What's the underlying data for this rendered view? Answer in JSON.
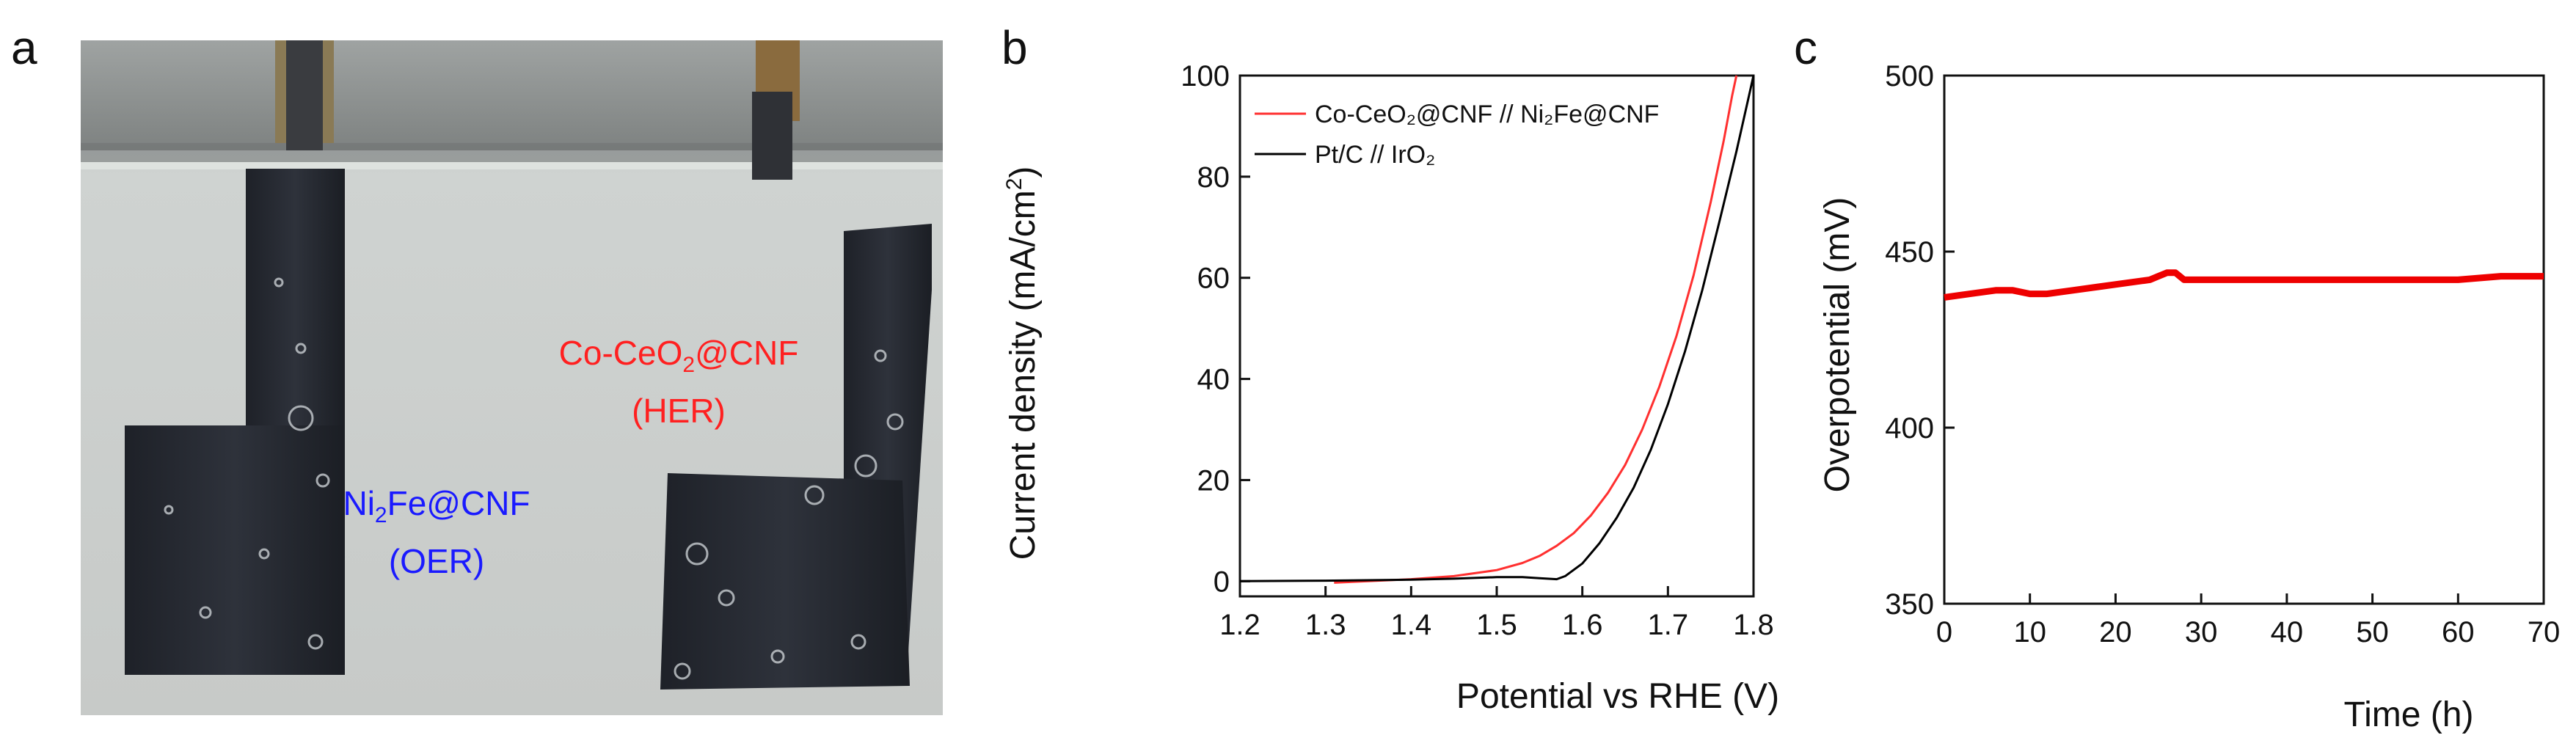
{
  "panel_labels": {
    "a": "a",
    "b": "b",
    "c": "c"
  },
  "photo": {
    "cathode_label": {
      "name": "Co-CeO",
      "sub": "2",
      "rest": "@CNF",
      "role": "(HER)",
      "color": "#ff2020"
    },
    "anode_label": {
      "name": "Ni",
      "sub": "2",
      "rest": "Fe@CNF",
      "role": "(OER)",
      "color": "#1a1aff"
    }
  },
  "chart_data": [
    {
      "type": "line",
      "panel": "b",
      "title": "",
      "xlabel": "Potential vs RHE (V)",
      "ylabel_text": "Current density (mA/cm",
      "ylabel_sup": "2",
      "ylabel_close": ")",
      "xlim": [
        1.2,
        1.8
      ],
      "ylim": [
        -3,
        100
      ],
      "xticks": [
        "1.2",
        "1.3",
        "1.4",
        "1.5",
        "1.6",
        "1.7",
        "1.8"
      ],
      "yticks": [
        "0",
        "20",
        "40",
        "60",
        "80",
        "100"
      ],
      "legend_position": "top-left",
      "series": [
        {
          "name": "Co-CeO₂@CNF // Ni₂Fe@CNF",
          "color": "#ff3030",
          "x": [
            1.31,
            1.35,
            1.4,
            1.45,
            1.5,
            1.53,
            1.55,
            1.57,
            1.59,
            1.61,
            1.63,
            1.65,
            1.67,
            1.69,
            1.71,
            1.73,
            1.75,
            1.765,
            1.775,
            1.78
          ],
          "y": [
            -0.3,
            0.0,
            0.4,
            1.0,
            2.2,
            3.6,
            5.0,
            7.0,
            9.5,
            13.0,
            17.5,
            23.0,
            30.0,
            38.5,
            48.5,
            60.5,
            75.0,
            87.0,
            96.0,
            100.0
          ]
        },
        {
          "name": "Pt/C // IrO₂",
          "color": "#000000",
          "x": [
            1.2,
            1.3,
            1.4,
            1.45,
            1.5,
            1.53,
            1.55,
            1.57,
            1.58,
            1.6,
            1.62,
            1.64,
            1.66,
            1.68,
            1.7,
            1.72,
            1.74,
            1.76,
            1.78,
            1.8
          ],
          "y": [
            0.0,
            0.1,
            0.3,
            0.5,
            0.8,
            0.8,
            0.6,
            0.4,
            1.0,
            3.5,
            7.5,
            12.5,
            18.5,
            26.0,
            35.0,
            45.5,
            57.5,
            71.0,
            85.0,
            100.0
          ]
        }
      ]
    },
    {
      "type": "line",
      "panel": "c",
      "title": "",
      "xlabel": "Time (h)",
      "ylabel": "Overpotential (mV)",
      "xlim": [
        0,
        70
      ],
      "ylim": [
        350,
        500
      ],
      "xticks": [
        "0",
        "10",
        "20",
        "30",
        "40",
        "50",
        "60",
        "70"
      ],
      "yticks": [
        "350",
        "400",
        "450",
        "500"
      ],
      "series": [
        {
          "name": "Overpotential",
          "color": "#ee0000",
          "x": [
            0,
            3,
            6,
            8,
            10,
            12,
            15,
            18,
            21,
            24,
            25,
            26,
            27,
            28,
            30,
            35,
            40,
            45,
            48,
            50,
            55,
            60,
            65,
            70
          ],
          "y": [
            437,
            438,
            439,
            439,
            438,
            438,
            439,
            440,
            441,
            442,
            443,
            444,
            444,
            442,
            442,
            442,
            442,
            442,
            442,
            442,
            442,
            442,
            443,
            443
          ]
        }
      ]
    }
  ]
}
